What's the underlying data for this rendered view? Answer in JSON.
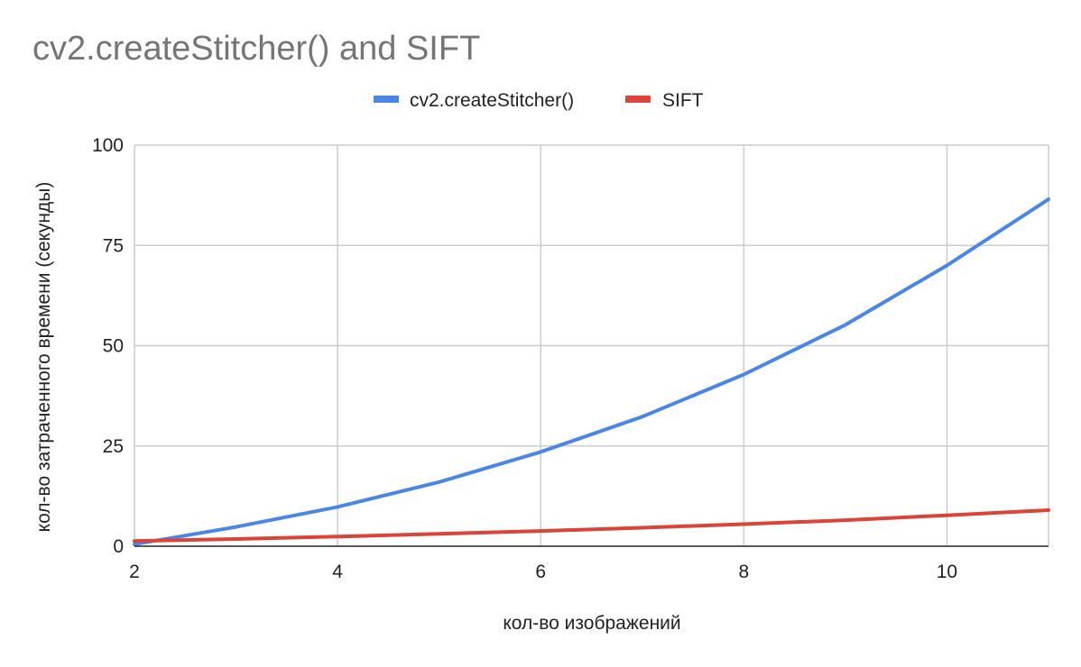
{
  "chart_data": {
    "type": "line",
    "title": "cv2.createStitcher() and SIFT",
    "xlabel": "кол-во изображений",
    "ylabel": "кол-во затраченного времени (секунды)",
    "x": [
      2,
      3,
      4,
      5,
      6,
      7,
      8,
      9,
      10,
      11
    ],
    "xlim": [
      2,
      11
    ],
    "ylim": [
      0,
      100
    ],
    "xticks": [
      "2",
      "4",
      "6",
      "8",
      "10"
    ],
    "yticks": [
      "0",
      "25",
      "50",
      "75",
      "100"
    ],
    "grid": true,
    "legend_position": "top",
    "series": [
      {
        "name": "cv2.createStitcher()",
        "color": "#4a86e8",
        "values": [
          0.5,
          4.8,
          9.8,
          16.0,
          23.5,
          32.3,
          42.8,
          55.2,
          70.0,
          86.5
        ]
      },
      {
        "name": "SIFT",
        "color": "#db4437",
        "values": [
          1.3,
          1.8,
          2.4,
          3.1,
          3.8,
          4.6,
          5.5,
          6.5,
          7.7,
          9.0
        ]
      }
    ]
  }
}
